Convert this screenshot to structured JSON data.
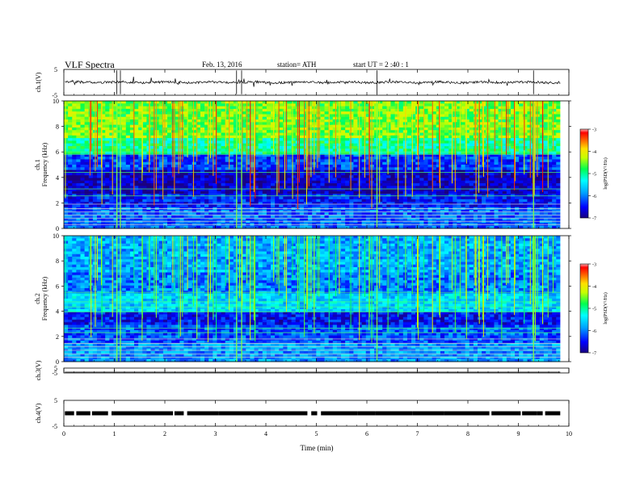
{
  "header": {
    "title": "VLF  Spectra",
    "date": "Feb. 13, 2016",
    "station": "station= ATH",
    "start": "start  UT  =   2  :40 : 1"
  },
  "chart_data": [
    {
      "panel": "ch1-waveform",
      "type": "line",
      "ylabel": "ch.1(V)",
      "ylim": [
        -5,
        5
      ],
      "yticks": [
        "5",
        "-5"
      ],
      "baseline": 0
    },
    {
      "panel": "ch1-spectrogram",
      "type": "heatmap",
      "ylabel": "Frequency  (kHz)",
      "ylabel_prefix": "ch.1",
      "ylim": [
        0,
        10
      ],
      "yticks": [
        "0",
        "2",
        "4",
        "6",
        "8",
        "10"
      ],
      "colorbar": {
        "label": "log(PSD(V²/Hz)",
        "range": [
          -7,
          -3
        ],
        "ticks": [
          "-3",
          "-4",
          "-5",
          "-6",
          "-7"
        ]
      }
    },
    {
      "panel": "ch2-spectrogram",
      "type": "heatmap",
      "ylabel": "Frequency  (kHz)",
      "ylabel_prefix": "ch.2",
      "ylim": [
        0,
        10
      ],
      "yticks": [
        "0",
        "2",
        "4",
        "6",
        "8",
        "10"
      ],
      "colorbar": {
        "label": "log(PSD(V²/Hz)",
        "range": [
          -7,
          -3
        ],
        "ticks": [
          "-3",
          "-4",
          "-5",
          "-6",
          "-7"
        ]
      }
    },
    {
      "panel": "ch3-waveform",
      "type": "line",
      "ylabel": "ch.3(V)",
      "ylim": [
        -5,
        5
      ],
      "yticks": [
        "5",
        "-5"
      ]
    },
    {
      "panel": "ch4-waveform",
      "type": "line",
      "ylabel": "ch.4(V)",
      "ylim": [
        -5,
        5
      ],
      "yticks": [
        "5",
        "-5"
      ]
    }
  ],
  "xaxis": {
    "label": "Time  (min)",
    "range": [
      0,
      10
    ],
    "ticks": [
      "0",
      "1",
      "2",
      "3",
      "4",
      "5",
      "6",
      "7",
      "8",
      "9",
      "10"
    ]
  }
}
